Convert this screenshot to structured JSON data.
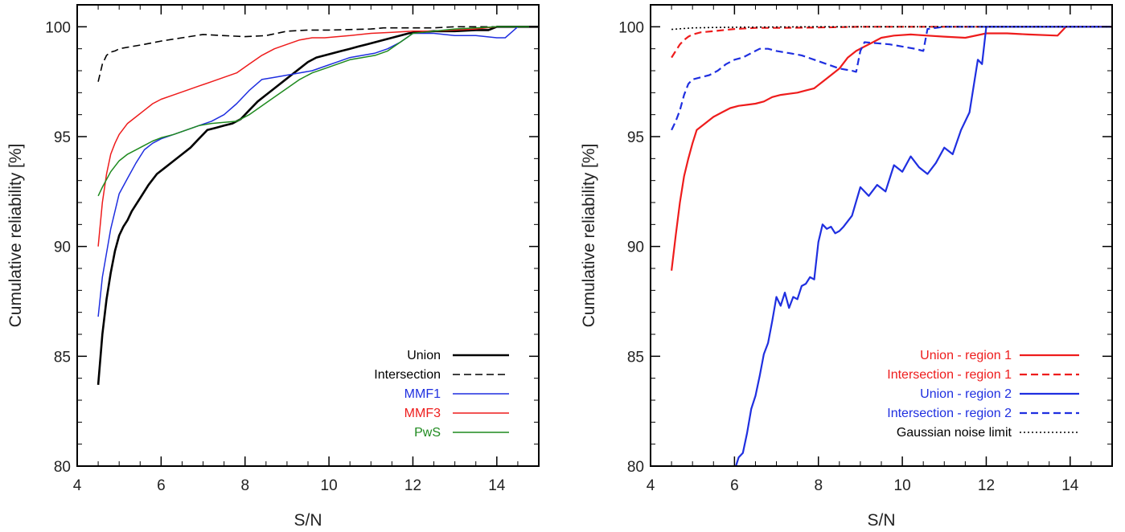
{
  "chart_data": [
    {
      "type": "line",
      "xlabel": "S/N",
      "ylabel": "Cumulative reliability [%]",
      "xlim": [
        4,
        15
      ],
      "ylim": [
        80,
        101
      ],
      "xticks": [
        4,
        6,
        8,
        10,
        12,
        14
      ],
      "yticks": [
        80,
        85,
        90,
        95,
        100
      ],
      "legend_position": "bottom-right",
      "series": [
        {
          "name": "Union",
          "color": "#000000",
          "dash": "solid",
          "width": 2.6,
          "x": [
            4.5,
            4.6,
            4.7,
            4.8,
            4.9,
            5.0,
            5.1,
            5.2,
            5.3,
            5.5,
            5.7,
            5.9,
            6.1,
            6.3,
            6.5,
            6.7,
            6.9,
            7.1,
            7.3,
            7.5,
            7.7,
            7.9,
            8.1,
            8.3,
            8.5,
            8.7,
            8.9,
            9.1,
            9.3,
            9.5,
            9.7,
            9.9,
            10.1,
            10.3,
            10.5,
            10.7,
            10.9,
            11.1,
            11.3,
            11.5,
            11.7,
            11.9,
            12.1,
            12.5,
            13.0,
            13.5,
            13.8,
            14.0,
            14.5,
            15.0
          ],
          "y": [
            83.7,
            86.0,
            87.6,
            88.8,
            89.8,
            90.5,
            90.9,
            91.2,
            91.6,
            92.2,
            92.8,
            93.3,
            93.6,
            93.9,
            94.2,
            94.5,
            94.9,
            95.3,
            95.4,
            95.5,
            95.6,
            95.8,
            96.2,
            96.6,
            96.9,
            97.2,
            97.5,
            97.8,
            98.1,
            98.4,
            98.6,
            98.7,
            98.8,
            98.9,
            99.0,
            99.1,
            99.2,
            99.3,
            99.4,
            99.5,
            99.6,
            99.7,
            99.75,
            99.8,
            99.8,
            99.85,
            99.85,
            100.0,
            100.0,
            100.0
          ]
        },
        {
          "name": "Intersection",
          "color": "#000000",
          "dash": "dashed",
          "width": 1.6,
          "x": [
            4.5,
            4.6,
            4.7,
            4.8,
            4.9,
            5.0,
            5.3,
            5.6,
            6.0,
            6.5,
            7.0,
            7.5,
            8.0,
            8.5,
            9.0,
            9.5,
            10.0,
            11.0,
            11.3,
            12.0,
            12.5,
            13.0,
            13.5,
            14.0,
            15.0
          ],
          "y": [
            97.5,
            98.3,
            98.7,
            98.85,
            98.9,
            99.0,
            99.1,
            99.2,
            99.35,
            99.5,
            99.65,
            99.6,
            99.55,
            99.6,
            99.8,
            99.85,
            99.85,
            99.9,
            99.95,
            99.95,
            99.95,
            100.0,
            100.0,
            100.0,
            100.0
          ]
        },
        {
          "name": "MMF1",
          "color": "#1f2fe0",
          "dash": "solid",
          "width": 1.5,
          "x": [
            4.5,
            4.6,
            4.8,
            5.0,
            5.2,
            5.4,
            5.6,
            5.8,
            6.0,
            6.3,
            6.6,
            6.9,
            7.2,
            7.5,
            7.8,
            8.1,
            8.4,
            8.7,
            9.0,
            9.3,
            9.6,
            9.9,
            10.2,
            10.5,
            10.8,
            11.1,
            11.4,
            11.7,
            12.0,
            12.5,
            13.0,
            13.5,
            14.0,
            14.2,
            14.5,
            15.0
          ],
          "y": [
            86.8,
            88.6,
            90.8,
            92.4,
            93.1,
            93.8,
            94.4,
            94.7,
            94.9,
            95.1,
            95.3,
            95.5,
            95.7,
            96.0,
            96.5,
            97.1,
            97.6,
            97.7,
            97.8,
            97.9,
            98.0,
            98.2,
            98.4,
            98.6,
            98.7,
            98.8,
            99.0,
            99.3,
            99.7,
            99.7,
            99.6,
            99.6,
            99.5,
            99.5,
            100.0,
            100.0
          ]
        },
        {
          "name": "MMF3",
          "color": "#ee1c1c",
          "dash": "solid",
          "width": 1.5,
          "x": [
            4.5,
            4.6,
            4.7,
            4.8,
            4.9,
            5.0,
            5.2,
            5.4,
            5.6,
            5.8,
            6.0,
            6.3,
            6.6,
            6.9,
            7.2,
            7.5,
            7.8,
            8.1,
            8.4,
            8.7,
            9.0,
            9.3,
            9.6,
            9.9,
            10.2,
            10.5,
            11.0,
            11.5,
            12.0,
            12.5,
            13.0,
            13.5,
            14.0,
            15.0
          ],
          "y": [
            90.0,
            92.0,
            93.3,
            94.2,
            94.7,
            95.1,
            95.6,
            95.9,
            96.2,
            96.5,
            96.7,
            96.9,
            97.1,
            97.3,
            97.5,
            97.7,
            97.9,
            98.3,
            98.7,
            99.0,
            99.2,
            99.4,
            99.5,
            99.5,
            99.55,
            99.6,
            99.7,
            99.75,
            99.8,
            99.8,
            99.85,
            99.9,
            100.0,
            100.0
          ]
        },
        {
          "name": "PwS",
          "color": "#1f8a1f",
          "dash": "solid",
          "width": 1.5,
          "x": [
            4.5,
            4.6,
            4.8,
            5.0,
            5.2,
            5.4,
            5.6,
            5.8,
            6.0,
            6.3,
            6.6,
            6.9,
            7.2,
            7.5,
            7.8,
            8.1,
            8.4,
            8.7,
            9.0,
            9.3,
            9.6,
            9.9,
            10.2,
            10.5,
            10.8,
            11.1,
            11.4,
            11.7,
            12.0,
            12.5,
            13.0,
            13.5,
            14.0,
            15.0
          ],
          "y": [
            92.3,
            92.7,
            93.4,
            93.9,
            94.2,
            94.4,
            94.6,
            94.8,
            94.95,
            95.1,
            95.3,
            95.5,
            95.6,
            95.65,
            95.7,
            96.0,
            96.4,
            96.8,
            97.2,
            97.6,
            97.9,
            98.1,
            98.3,
            98.5,
            98.6,
            98.7,
            98.9,
            99.3,
            99.7,
            99.8,
            99.9,
            99.95,
            100.0,
            100.0
          ]
        }
      ]
    },
    {
      "type": "line",
      "xlabel": "S/N",
      "ylabel": "Cumulative reliability [%]",
      "xlim": [
        4,
        15
      ],
      "ylim": [
        80,
        101
      ],
      "xticks": [
        4,
        6,
        8,
        10,
        12,
        14
      ],
      "yticks": [
        80,
        85,
        90,
        95,
        100
      ],
      "legend_position": "bottom-right",
      "series": [
        {
          "name": "Union - region 1",
          "color": "#ee1c1c",
          "dash": "solid",
          "width": 2.2,
          "x": [
            4.5,
            4.6,
            4.7,
            4.8,
            4.9,
            5.0,
            5.1,
            5.3,
            5.5,
            5.7,
            5.9,
            6.1,
            6.3,
            6.5,
            6.7,
            6.9,
            7.1,
            7.3,
            7.5,
            7.7,
            7.9,
            8.1,
            8.3,
            8.5,
            8.7,
            8.9,
            9.1,
            9.3,
            9.5,
            9.8,
            10.2,
            10.6,
            11.0,
            11.5,
            12.0,
            12.5,
            13.0,
            13.7,
            13.9,
            14.0,
            15.0
          ],
          "y": [
            88.9,
            90.5,
            92.0,
            93.2,
            94.0,
            94.7,
            95.3,
            95.6,
            95.9,
            96.1,
            96.3,
            96.4,
            96.45,
            96.5,
            96.6,
            96.8,
            96.9,
            96.95,
            97.0,
            97.1,
            97.2,
            97.5,
            97.8,
            98.1,
            98.6,
            98.9,
            99.1,
            99.3,
            99.5,
            99.6,
            99.65,
            99.6,
            99.55,
            99.5,
            99.7,
            99.7,
            99.65,
            99.6,
            100.0,
            100.0,
            100.0
          ]
        },
        {
          "name": "Intersection - region 1",
          "color": "#ee1c1c",
          "dash": "dashed",
          "width": 2.2,
          "x": [
            4.5,
            4.6,
            4.7,
            4.8,
            4.9,
            5.0,
            5.2,
            5.5,
            6.0,
            6.5,
            7.0,
            8.0,
            9.0,
            10.0,
            11.0,
            12.0,
            13.0,
            15.0
          ],
          "y": [
            98.6,
            98.9,
            99.2,
            99.4,
            99.55,
            99.65,
            99.75,
            99.8,
            99.9,
            99.95,
            99.95,
            99.97,
            100.0,
            100.0,
            100.0,
            100.0,
            100.0,
            100.0
          ]
        },
        {
          "name": "Union - region 2",
          "color": "#1f2fe0",
          "dash": "solid",
          "width": 2.2,
          "x": [
            6.0,
            6.1,
            6.2,
            6.3,
            6.4,
            6.5,
            6.6,
            6.7,
            6.8,
            6.9,
            7.0,
            7.1,
            7.2,
            7.3,
            7.4,
            7.5,
            7.6,
            7.7,
            7.8,
            7.9,
            8.0,
            8.1,
            8.2,
            8.3,
            8.4,
            8.5,
            8.6,
            8.8,
            9.0,
            9.2,
            9.4,
            9.6,
            9.8,
            10.0,
            10.2,
            10.4,
            10.6,
            10.8,
            11.0,
            11.2,
            11.4,
            11.6,
            11.8,
            11.9,
            12.0,
            13.0,
            14.0,
            15.0
          ],
          "y": [
            79.8,
            80.4,
            80.6,
            81.5,
            82.6,
            83.2,
            84.1,
            85.1,
            85.6,
            86.6,
            87.7,
            87.3,
            87.9,
            87.2,
            87.7,
            87.6,
            88.2,
            88.3,
            88.6,
            88.5,
            90.2,
            91.0,
            90.8,
            90.9,
            90.6,
            90.7,
            90.9,
            91.4,
            92.7,
            92.3,
            92.8,
            92.5,
            93.7,
            93.4,
            94.1,
            93.6,
            93.3,
            93.8,
            94.5,
            94.2,
            95.3,
            96.1,
            98.5,
            98.3,
            100.0,
            100.0,
            100.0,
            100.0
          ]
        },
        {
          "name": "Intersection - region 2",
          "color": "#1f2fe0",
          "dash": "dashed",
          "width": 2.2,
          "x": [
            4.5,
            4.6,
            4.7,
            4.8,
            4.9,
            5.0,
            5.2,
            5.4,
            5.6,
            5.8,
            6.0,
            6.2,
            6.4,
            6.6,
            6.8,
            7.0,
            7.3,
            7.6,
            7.9,
            8.2,
            8.5,
            8.8,
            8.9,
            9.0,
            9.1,
            9.4,
            9.7,
            10.0,
            10.3,
            10.5,
            10.6,
            11.0,
            11.5,
            12.0,
            13.0,
            15.0
          ],
          "y": [
            95.3,
            95.7,
            96.2,
            96.9,
            97.4,
            97.6,
            97.7,
            97.8,
            98.0,
            98.3,
            98.5,
            98.6,
            98.8,
            99.0,
            99.0,
            98.9,
            98.8,
            98.7,
            98.5,
            98.3,
            98.1,
            98.0,
            97.95,
            98.9,
            99.3,
            99.25,
            99.2,
            99.1,
            99.0,
            98.9,
            99.9,
            100.0,
            100.0,
            100.0,
            100.0,
            100.0
          ]
        },
        {
          "name": "Gaussian noise limit",
          "color": "#000000",
          "dash": "dotted",
          "width": 1.6,
          "x": [
            4.5,
            5.0,
            5.5,
            6.0,
            7.0,
            8.0,
            9.0,
            10.0,
            12.0,
            15.0
          ],
          "y": [
            99.88,
            99.95,
            99.97,
            99.98,
            99.99,
            100.0,
            100.0,
            100.0,
            100.0,
            100.0
          ]
        }
      ]
    }
  ]
}
